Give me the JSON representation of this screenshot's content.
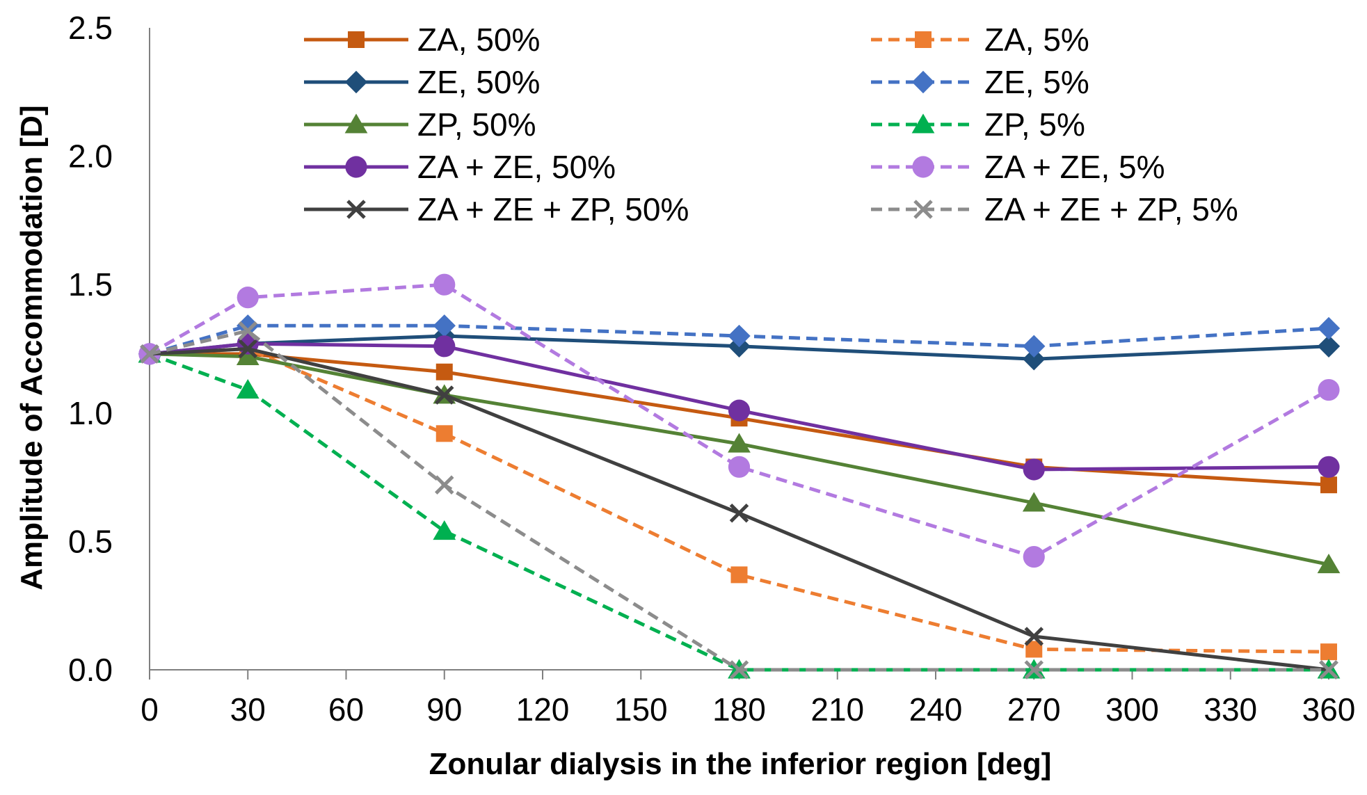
{
  "chart_data": {
    "type": "line",
    "title": "",
    "xlabel": "Zonular dialysis in the inferior region [deg]",
    "ylabel": "Amplitude of Accommodation [D]",
    "xlim": [
      0,
      360
    ],
    "ylim": [
      0,
      2.5
    ],
    "xticks": [
      0,
      30,
      60,
      90,
      120,
      150,
      180,
      210,
      240,
      270,
      300,
      330,
      360
    ],
    "xtick_labels": [
      "0",
      "30",
      "60",
      "90",
      "120",
      "150",
      "180",
      "210",
      "240",
      "270",
      "300",
      "330",
      "360"
    ],
    "yticks": [
      0,
      0.5,
      1.0,
      1.5,
      2.0,
      2.5
    ],
    "ytick_labels": [
      "0.0",
      "0.5",
      "1.0",
      "1.5",
      "2.0",
      "2.5"
    ],
    "grid": false,
    "legend_position": "top",
    "x": [
      0,
      30,
      90,
      180,
      270,
      360
    ],
    "series": [
      {
        "name": "ZA, 50%",
        "color": "#c55a11",
        "dash": "solid",
        "marker": "square",
        "values": [
          1.23,
          1.23,
          1.16,
          0.98,
          0.79,
          0.72
        ]
      },
      {
        "name": "ZA, 5%",
        "color": "#ed7d31",
        "dash": "dashed",
        "marker": "square",
        "values": [
          1.23,
          1.25,
          0.92,
          0.37,
          0.08,
          0.07
        ]
      },
      {
        "name": "ZE, 50%",
        "color": "#1f4e79",
        "dash": "solid",
        "marker": "diamond",
        "values": [
          1.23,
          1.27,
          1.3,
          1.26,
          1.21,
          1.26
        ]
      },
      {
        "name": "ZE, 5%",
        "color": "#4472c4",
        "dash": "dashed",
        "marker": "diamond",
        "values": [
          1.23,
          1.34,
          1.34,
          1.3,
          1.26,
          1.33
        ]
      },
      {
        "name": "ZP, 50%",
        "color": "#548235",
        "dash": "solid",
        "marker": "triangle",
        "values": [
          1.23,
          1.22,
          1.07,
          0.88,
          0.65,
          0.41
        ]
      },
      {
        "name": "ZP, 5%",
        "color": "#00b050",
        "dash": "dashed",
        "marker": "triangle",
        "values": [
          1.23,
          1.09,
          0.54,
          0.0,
          0.0,
          0.0
        ]
      },
      {
        "name": "ZA + ZE, 50%",
        "color": "#7030a0",
        "dash": "solid",
        "marker": "circle",
        "values": [
          1.23,
          1.27,
          1.26,
          1.01,
          0.78,
          0.79
        ]
      },
      {
        "name": "ZA + ZE, 5%",
        "color": "#b27ae0",
        "dash": "dashed",
        "marker": "circle",
        "values": [
          1.23,
          1.45,
          1.5,
          0.79,
          0.44,
          1.09
        ]
      },
      {
        "name": "ZA + ZE + ZP, 50%",
        "color": "#404040",
        "dash": "solid",
        "marker": "x",
        "values": [
          1.23,
          1.25,
          1.07,
          0.61,
          0.13,
          0.0
        ]
      },
      {
        "name": "ZA + ZE + ZP, 5%",
        "color": "#8c8c8c",
        "dash": "dashed",
        "marker": "x",
        "values": [
          1.23,
          1.32,
          0.72,
          0.0,
          0.0,
          0.0
        ]
      }
    ]
  }
}
